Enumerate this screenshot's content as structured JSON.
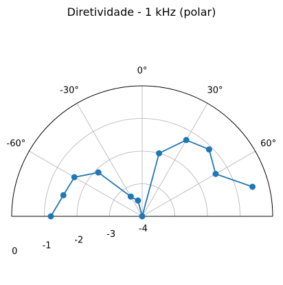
{
  "chart_data": {
    "type": "line",
    "title": "Diretividade - 1 kHz (polar)",
    "projection": "polar",
    "theta_zero_location": "top",
    "theta_direction": "clockwise",
    "theta_range_deg": [
      -90,
      90
    ],
    "theta_tick_labels": [
      "-60°",
      "-30°",
      "0°",
      "30°",
      "60°"
    ],
    "theta_ticks_deg": [
      -60,
      -30,
      0,
      30,
      60
    ],
    "r_range": [
      -4,
      0
    ],
    "r_tick_labels": [
      "0",
      "-1",
      "-2",
      "-3",
      "-4"
    ],
    "r_ticks": [
      0,
      -1,
      -2,
      -3,
      -4
    ],
    "grid": true,
    "series": [
      {
        "color": "#1f77b4",
        "marker": "circle",
        "points": [
          {
            "theta_deg": -90,
            "r": -1.2
          },
          {
            "theta_deg": -75,
            "r": -1.5
          },
          {
            "theta_deg": -60,
            "r": -1.6
          },
          {
            "theta_deg": -45,
            "r": -2.1
          },
          {
            "theta_deg": -30,
            "r": -3.3
          },
          {
            "theta_deg": -15,
            "r": -3.5
          },
          {
            "theta_deg": 0,
            "r": -4.0
          },
          {
            "theta_deg": 15,
            "r": -2.0
          },
          {
            "theta_deg": 30,
            "r": -1.3
          },
          {
            "theta_deg": 45,
            "r": -1.1
          },
          {
            "theta_deg": 60,
            "r": -1.4
          },
          {
            "theta_deg": 75,
            "r": -0.5
          }
        ]
      }
    ]
  }
}
